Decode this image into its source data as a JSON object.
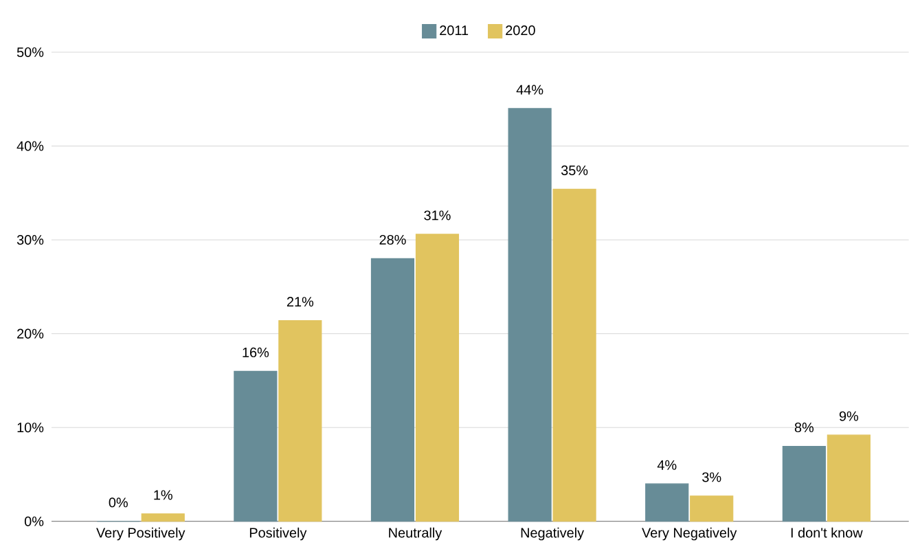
{
  "chart_data": {
    "type": "bar",
    "categories": [
      "Very Positively",
      "Positively",
      "Neutrally",
      "Negatively",
      "Very Negatively",
      "I don't know"
    ],
    "series": [
      {
        "name": "2011",
        "color": "#678c97",
        "values": [
          0,
          16.0,
          28.0,
          44.0,
          4.0,
          8.0
        ],
        "value_labels": [
          "0%",
          "16%",
          "28%",
          "44%",
          "4%",
          "8%"
        ]
      },
      {
        "name": "2020",
        "color": "#e1c45f",
        "values": [
          0.8,
          21.4,
          30.6,
          35.4,
          2.7,
          9.2
        ],
        "value_labels": [
          "1%",
          "21%",
          "31%",
          "35%",
          "3%",
          "9%"
        ]
      }
    ],
    "ylim": [
      0,
      50
    ],
    "yticks": [
      {
        "value": 0,
        "label": "0%"
      },
      {
        "value": 10,
        "label": "10%"
      },
      {
        "value": 20,
        "label": "20%"
      },
      {
        "value": 30,
        "label": "30%"
      },
      {
        "value": 40,
        "label": "40%"
      },
      {
        "value": 50,
        "label": "50%"
      }
    ],
    "grid": "y",
    "legend": "top"
  }
}
